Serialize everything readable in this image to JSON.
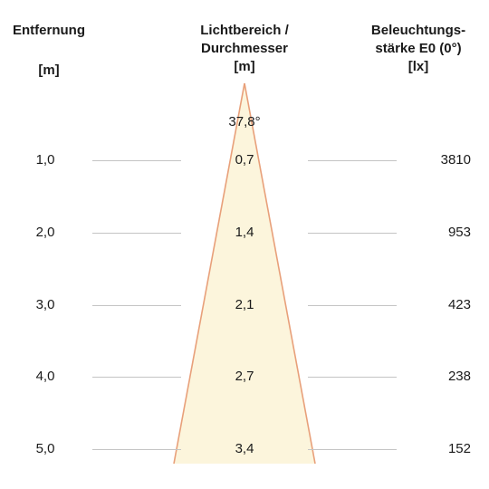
{
  "headers": {
    "distance": {
      "title": "Entfernung",
      "unit": "[m]"
    },
    "beam": {
      "title_line1": "Lichtbereich /",
      "title_line2": "Durchmesser",
      "unit": "[m]"
    },
    "illuminance": {
      "title_line1": "Beleuchtungs-",
      "title_line2": "stärke E0 (0°)",
      "unit": "[lx]"
    }
  },
  "beam_angle": "37,8°",
  "rows": [
    {
      "distance": "1,0",
      "diameter": "0,7",
      "illuminance": "3810"
    },
    {
      "distance": "2,0",
      "diameter": "1,4",
      "illuminance": "953"
    },
    {
      "distance": "3,0",
      "diameter": "2,1",
      "illuminance": "423"
    },
    {
      "distance": "4,0",
      "diameter": "2,7",
      "illuminance": "238"
    },
    {
      "distance": "5,0",
      "diameter": "3,4",
      "illuminance": "152"
    }
  ],
  "colors": {
    "cone_fill": "#fcf5dc",
    "cone_edge": "#e8a07a",
    "rule": "#c4c4c4",
    "text": "#1a1a1a"
  }
}
